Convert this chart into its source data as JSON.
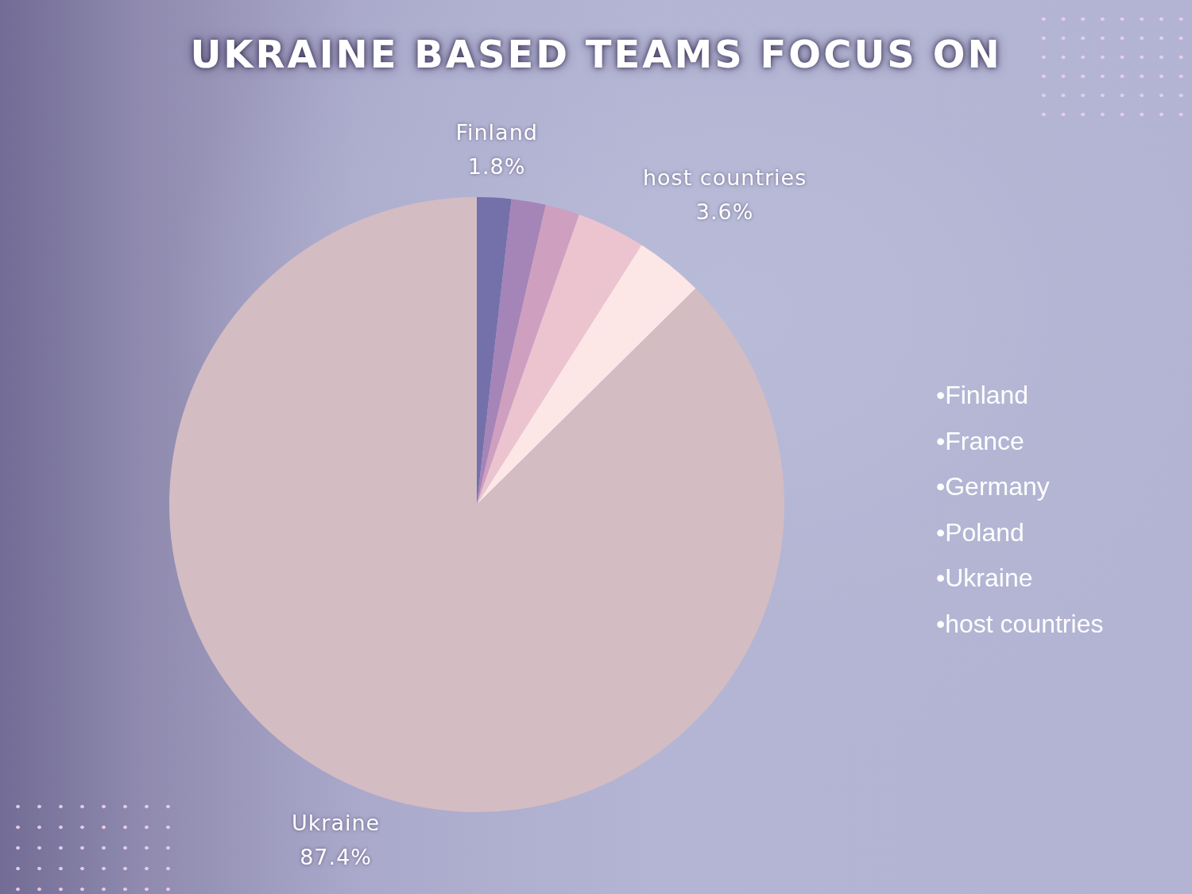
{
  "chart_data": {
    "type": "pie",
    "title": "UKRAINE BASED TEAMS FOCUS ON",
    "categories": [
      "Finland",
      null,
      null,
      null,
      "host countries",
      "Ukraine"
    ],
    "values": [
      1.8,
      1.8,
      1.8,
      3.6,
      3.6,
      87.4
    ],
    "colors": [
      "#7470aa",
      "#a584b8",
      "#cf9fc0",
      "#ecc4cf",
      "#fde6e6",
      "#d4bcc3"
    ],
    "value_labels": [
      "1.8%",
      null,
      null,
      null,
      "3.6%",
      "87.4%"
    ],
    "annotations": [
      "•Finland",
      "•France",
      "•Germany",
      "•Poland",
      "•Ukraine",
      "•host countries"
    ]
  }
}
